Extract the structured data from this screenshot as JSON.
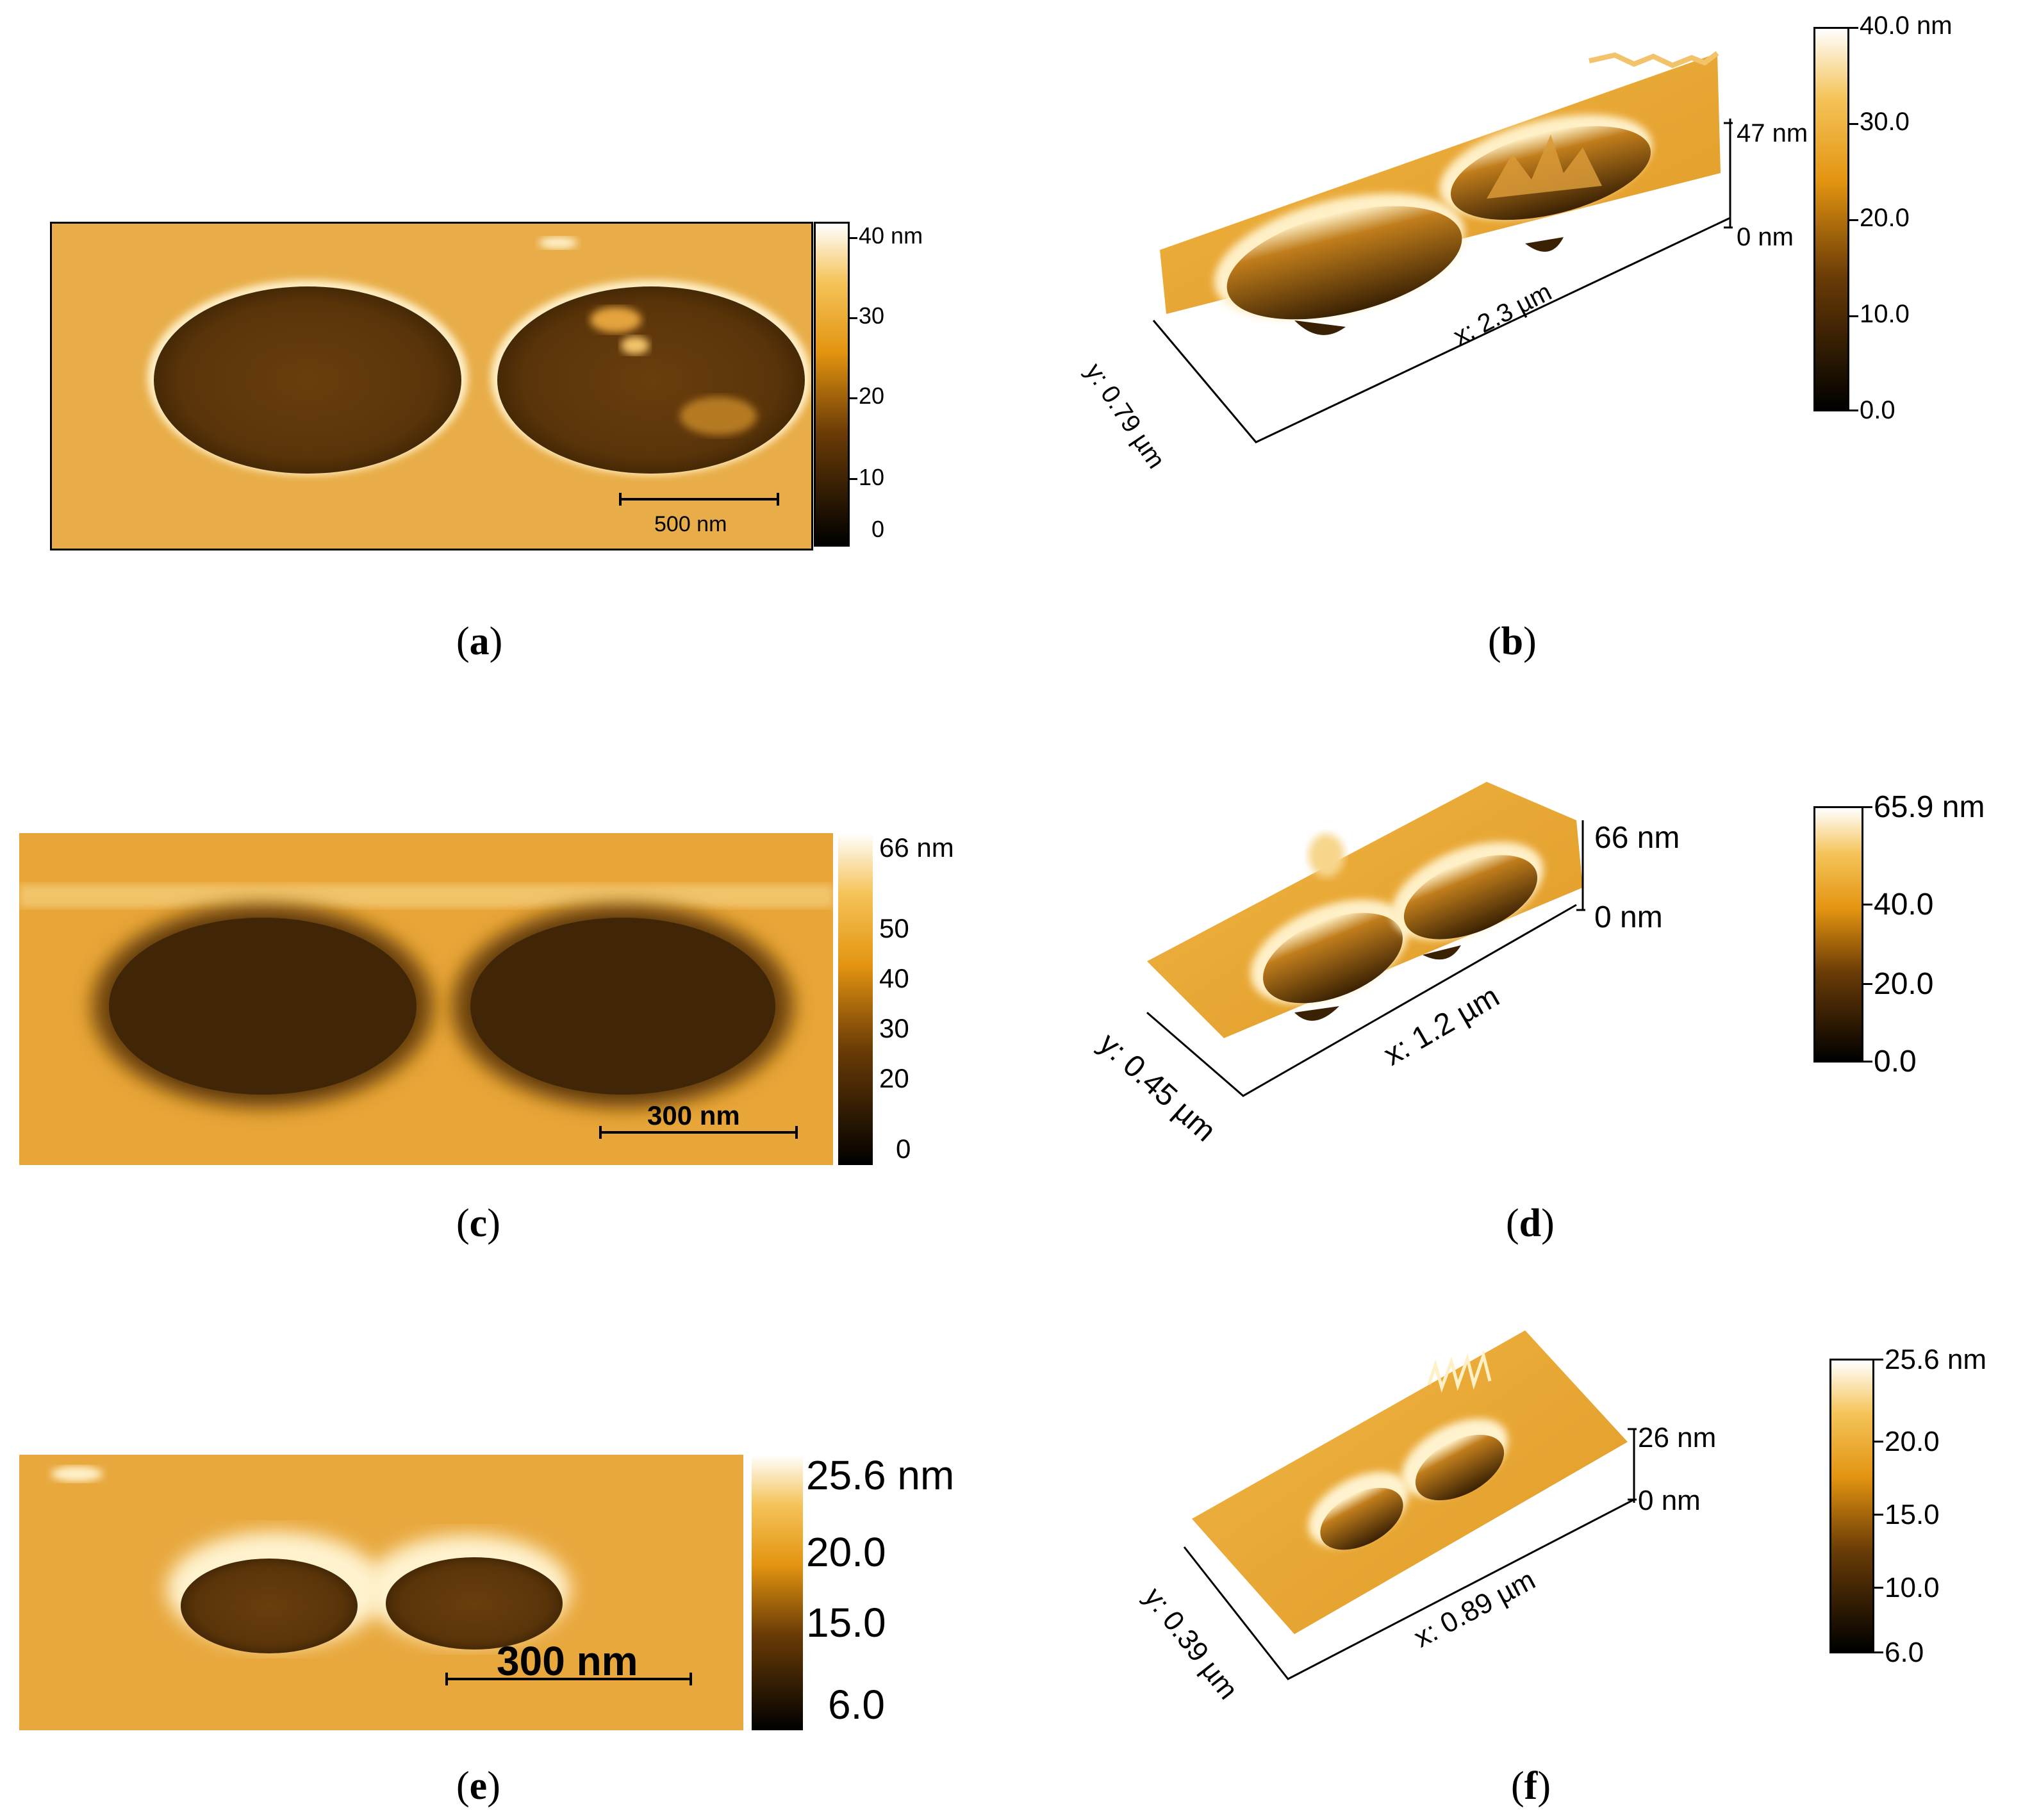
{
  "panels": {
    "a": {
      "caption": "a",
      "scalebar": "500 nm",
      "colorbar_ticks": [
        "40 nm",
        "30",
        "20",
        "10",
        "0"
      ]
    },
    "b": {
      "caption": "b",
      "z_top": "47 nm",
      "z_bottom": "0 nm",
      "x_axis": "x: 2.3 µm",
      "y_axis": "y: 0.79 µm",
      "colorbar_ticks": [
        "40.0 nm",
        "30.0",
        "20.0",
        "10.0",
        "0.0"
      ]
    },
    "c": {
      "caption": "c",
      "scalebar": "300 nm",
      "colorbar_ticks": [
        "66 nm",
        "50",
        "40",
        "30",
        "20",
        "0"
      ]
    },
    "d": {
      "caption": "d",
      "z_top": "66 nm",
      "z_bottom": "0 nm",
      "x_axis": "x: 1.2 µm",
      "y_axis": "y: 0.45 µm",
      "colorbar_ticks": [
        "65.9 nm",
        "40.0",
        "20.0",
        "0.0"
      ]
    },
    "e": {
      "caption": "e",
      "scalebar": "300 nm",
      "colorbar_ticks": [
        "25.6 nm",
        "20.0",
        "15.0",
        "6.0"
      ]
    },
    "f": {
      "caption": "f",
      "z_top": "26 nm",
      "z_bottom": "0 nm",
      "x_axis": "x: 0.89 µm",
      "y_axis": "y: 0.39 µm",
      "colorbar_ticks": [
        "25.6 nm",
        "20.0",
        "15.0",
        "10.0",
        "6.0"
      ]
    }
  },
  "colors": {
    "surface": "#e8aa3a",
    "pit": "#4a2a08",
    "highlight": "#fff6d6"
  }
}
